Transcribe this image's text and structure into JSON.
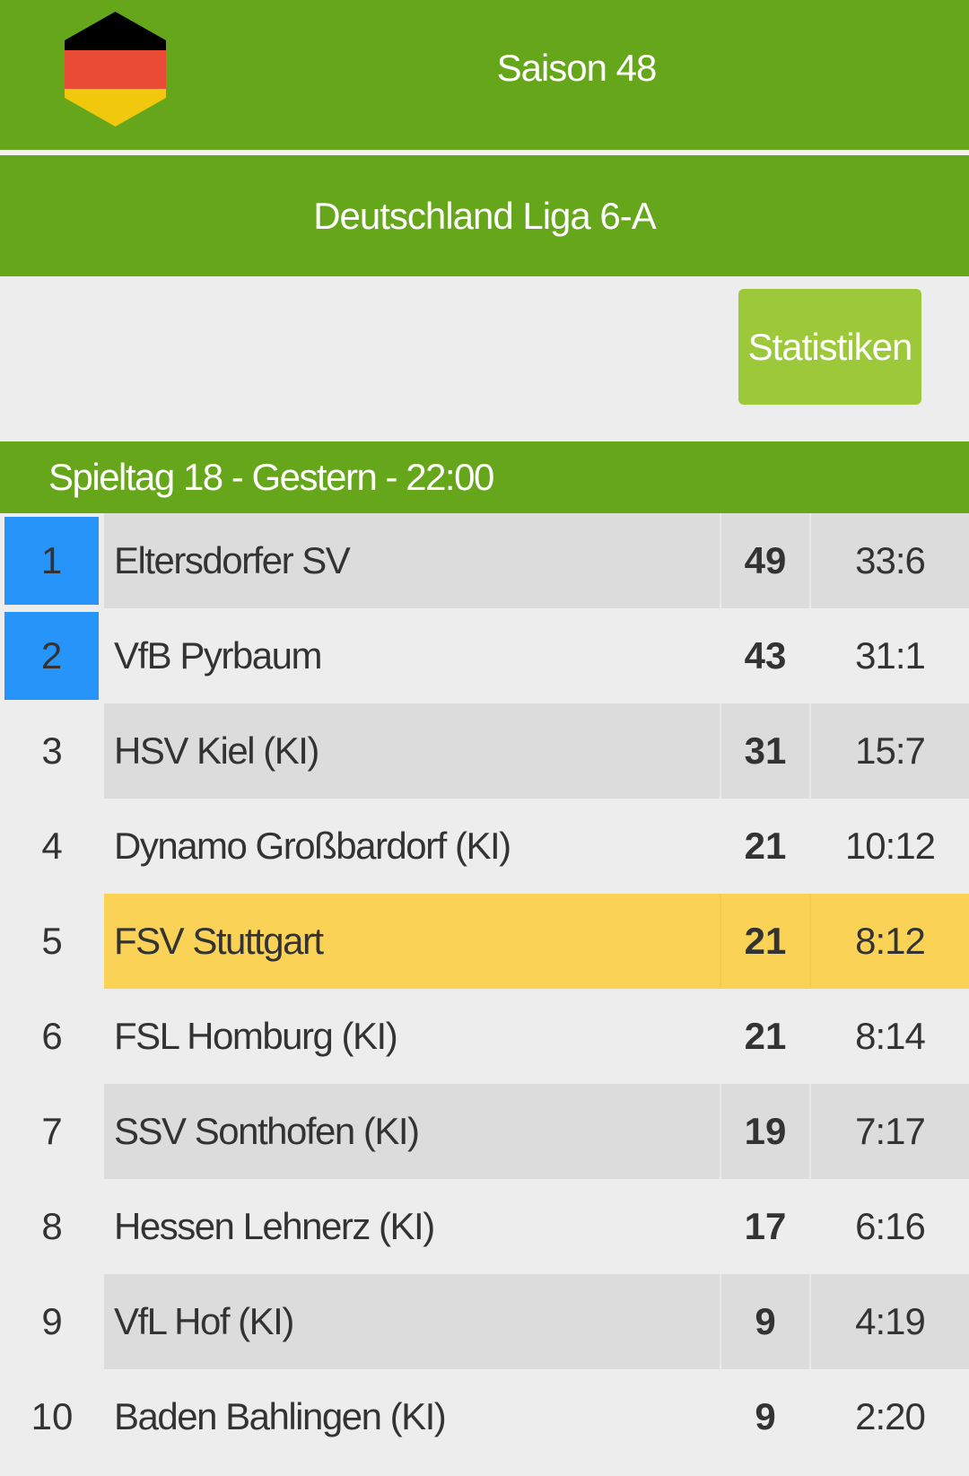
{
  "header": {
    "flag_icon": "germany-flag-hexagon-icon",
    "flag_colors": [
      "#000000",
      "#e94b35",
      "#f2c80f"
    ],
    "season_title": "Saison 48",
    "league_title": "Deutschland Liga 6-A"
  },
  "actions": {
    "stats_label": "Statistiken"
  },
  "matchday": {
    "label": "Spieltag 18 - Gestern - 22:00"
  },
  "colors": {
    "brand_green": "#66a61a",
    "button_green": "#9dc83a",
    "promotion_blue": "#2694f8",
    "own_team_yellow": "#fad256"
  },
  "standings": [
    {
      "rank": "1",
      "team": "Eltersdorfer SV",
      "points": "49",
      "goals": "33:6",
      "promotion": true
    },
    {
      "rank": "2",
      "team": "VfB Pyrbaum",
      "points": "43",
      "goals": "31:1",
      "promotion": true
    },
    {
      "rank": "3",
      "team": "HSV Kiel (KI)",
      "points": "31",
      "goals": "15:7"
    },
    {
      "rank": "4",
      "team": "Dynamo Großbardorf (KI)",
      "points": "21",
      "goals": "10:12"
    },
    {
      "rank": "5",
      "team": "FSV Stuttgart",
      "points": "21",
      "goals": "8:12",
      "own_team": true
    },
    {
      "rank": "6",
      "team": "FSL Homburg (KI)",
      "points": "21",
      "goals": "8:14"
    },
    {
      "rank": "7",
      "team": "SSV Sonthofen (KI)",
      "points": "19",
      "goals": "7:17"
    },
    {
      "rank": "8",
      "team": "Hessen Lehnerz (KI)",
      "points": "17",
      "goals": "6:16"
    },
    {
      "rank": "9",
      "team": "VfL Hof (KI)",
      "points": "9",
      "goals": "4:19"
    },
    {
      "rank": "10",
      "team": "Baden Bahlingen (KI)",
      "points": "9",
      "goals": "2:20"
    }
  ]
}
